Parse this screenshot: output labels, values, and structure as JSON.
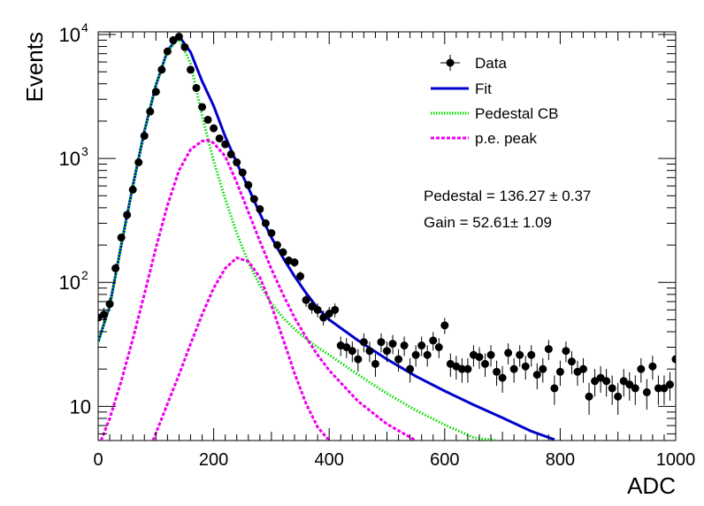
{
  "chart_data": {
    "type": "scatter",
    "title": "",
    "xlabel": "ADC",
    "ylabel": "Events",
    "xlim": [
      0,
      1000
    ],
    "ylim": [
      5.3,
      10500
    ],
    "yscale": "log",
    "x_ticks": [
      0,
      200,
      400,
      600,
      800,
      1000
    ],
    "y_ticks": [
      {
        "value": 10,
        "label": "10"
      },
      {
        "value": 100,
        "label": "10",
        "exp": "2"
      },
      {
        "value": 1000,
        "label": "10",
        "exp": "3"
      },
      {
        "value": 10000,
        "label": "10",
        "exp": "4"
      }
    ],
    "grid": false,
    "legend": {
      "position": "top-right",
      "entries": [
        {
          "label": "Data",
          "style": "marker",
          "color": "#000000"
        },
        {
          "label": "Fit",
          "style": "solid",
          "color": "#0000cc"
        },
        {
          "label": "Pedestal CB",
          "style": "dotted",
          "color": "#00dd00"
        },
        {
          "label": "p.e. peak",
          "style": "dashed",
          "color": "#ee00ee"
        }
      ]
    },
    "annotations": [
      {
        "text": "Pedestal = 136.27 ± 0.37"
      },
      {
        "text": "Gain = 52.61± 1.09"
      }
    ],
    "data_points": {
      "x": [
        0,
        10,
        20,
        30,
        40,
        50,
        60,
        70,
        80,
        90,
        100,
        110,
        120,
        130,
        140,
        150,
        160,
        170,
        180,
        190,
        200,
        210,
        220,
        230,
        240,
        250,
        260,
        270,
        280,
        290,
        300,
        310,
        320,
        330,
        340,
        350,
        360,
        370,
        380,
        390,
        400,
        410,
        420,
        430,
        440,
        450,
        460,
        470,
        480,
        490,
        500,
        510,
        520,
        530,
        540,
        550,
        560,
        570,
        580,
        590,
        600,
        610,
        620,
        630,
        640,
        650,
        660,
        670,
        680,
        690,
        700,
        710,
        720,
        730,
        740,
        750,
        760,
        770,
        780,
        790,
        800,
        810,
        820,
        830,
        840,
        850,
        860,
        870,
        880,
        890,
        900,
        910,
        920,
        930,
        940,
        950,
        960,
        970,
        980,
        990,
        1000
      ],
      "y": [
        52,
        55,
        67,
        130,
        230,
        350,
        560,
        930,
        1520,
        2390,
        3450,
        5200,
        7300,
        9000,
        9600,
        7900,
        5200,
        3700,
        2600,
        2050,
        1750,
        1450,
        1300,
        1080,
        930,
        770,
        610,
        470,
        390,
        300,
        250,
        200,
        175,
        150,
        145,
        112,
        72,
        64,
        60,
        52,
        56,
        60,
        31,
        30,
        28,
        24,
        33,
        28,
        22,
        33,
        28,
        32,
        24,
        31,
        20,
        26,
        31,
        26,
        34,
        30,
        45,
        22,
        21,
        20,
        20,
        26,
        25,
        22,
        26,
        19,
        17,
        27,
        20,
        26,
        21,
        26,
        18,
        20,
        29,
        14,
        19,
        28,
        23,
        19,
        20,
        12,
        16,
        17,
        16,
        14,
        12,
        16,
        15,
        14,
        20,
        13,
        21,
        14,
        14,
        15,
        24
      ]
    },
    "series": [
      {
        "name": "Fit",
        "style": "solid",
        "color": "#0000cc",
        "x": [
          0,
          20,
          40,
          60,
          80,
          100,
          120,
          140,
          160,
          180,
          200,
          220,
          240,
          260,
          280,
          300,
          320,
          340,
          360,
          380,
          400,
          450,
          500,
          550,
          600,
          650,
          700,
          750,
          790
        ],
        "y": [
          33,
          65,
          200,
          600,
          1650,
          3900,
          7400,
          9700,
          7200,
          4200,
          2650,
          1500,
          920,
          580,
          360,
          230,
          158,
          112,
          82,
          62,
          50,
          34,
          24,
          17.5,
          13.3,
          10.3,
          8.1,
          6.3,
          5.4
        ]
      },
      {
        "name": "Pedestal CB",
        "style": "dotted",
        "color": "#00dd00",
        "x": [
          0,
          20,
          40,
          60,
          80,
          100,
          120,
          140,
          160,
          180,
          200,
          220,
          240,
          260,
          280,
          300,
          320,
          340,
          360,
          380,
          400,
          450,
          500,
          550,
          600,
          650,
          690
        ],
        "y": [
          33,
          65,
          200,
          590,
          1650,
          3900,
          7300,
          9300,
          5800,
          2200,
          950,
          470,
          250,
          145,
          95,
          68,
          52,
          42,
          35,
          30,
          26,
          18,
          12.7,
          9.3,
          7.1,
          5.6,
          5.3
        ]
      },
      {
        "name": "p.e. peak 1",
        "style": "dashed",
        "color": "#ee00ee",
        "x": [
          5,
          20,
          40,
          60,
          80,
          100,
          120,
          140,
          160,
          180,
          190,
          200,
          220,
          240,
          260,
          280,
          300,
          320,
          340,
          360,
          380,
          400,
          450,
          500,
          550
        ],
        "y": [
          5.3,
          8,
          16,
          35,
          80,
          190,
          420,
          800,
          1180,
          1380,
          1400,
          1330,
          1040,
          640,
          370,
          215,
          128,
          80,
          52,
          36,
          26,
          19.5,
          11,
          7.2,
          5.3
        ]
      },
      {
        "name": "p.e. peak 2",
        "style": "dashed",
        "color": "#ee00ee",
        "x": [
          95,
          120,
          140,
          160,
          180,
          200,
          220,
          240,
          260,
          280,
          300,
          320,
          340,
          360,
          380,
          400
        ],
        "y": [
          5.3,
          10.5,
          18,
          32,
          55,
          90,
          130,
          158,
          148,
          110,
          65,
          35,
          18.5,
          10.5,
          6.8,
          5.3
        ]
      }
    ]
  }
}
